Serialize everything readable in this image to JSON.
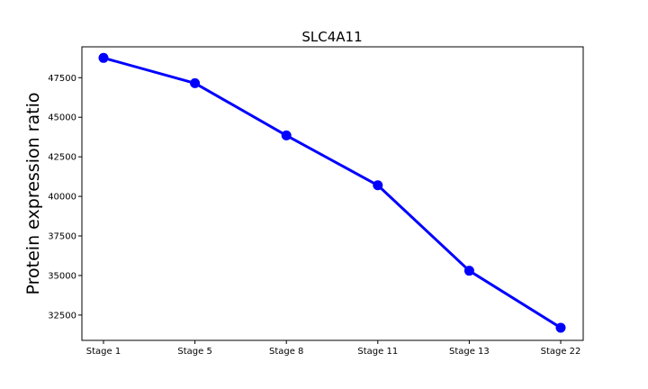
{
  "chart_data": {
    "type": "line",
    "title": "SLC4A11",
    "xlabel": "",
    "ylabel": "Protein expression ratio",
    "categories": [
      "Stage 1",
      "Stage 5",
      "Stage 8",
      "Stage 11",
      "Stage 13",
      "Stage 22"
    ],
    "series": [
      {
        "values": [
          48750,
          47150,
          43850,
          40700,
          35300,
          31700
        ],
        "color": "#0000ff",
        "marker": "circle"
      }
    ],
    "ylim": [
      30900,
      49450
    ],
    "yticks": [
      32500,
      35000,
      37500,
      40000,
      42500,
      45000,
      47500
    ],
    "grid": false,
    "legend": "none"
  }
}
